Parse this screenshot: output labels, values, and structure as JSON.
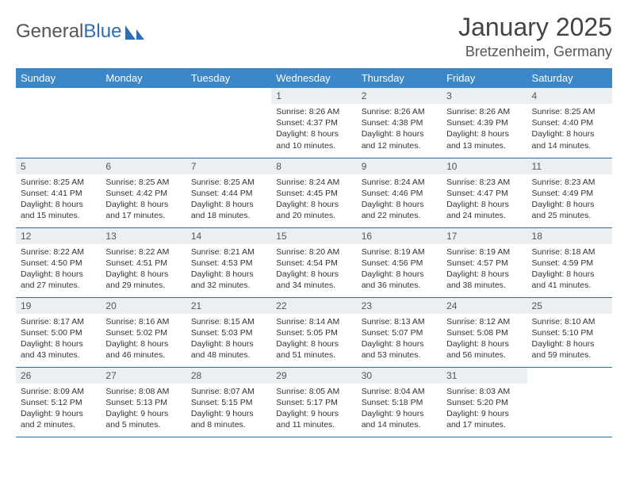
{
  "brand": {
    "part1": "General",
    "part2": "Blue",
    "part1_color": "#555555",
    "part2_color": "#2d6fb5"
  },
  "title": {
    "month": "January 2025",
    "location": "Bretzenheim, Germany",
    "month_fontsize": 32,
    "loc_fontsize": 18
  },
  "colors": {
    "header_bg": "#3b87c8",
    "header_text": "#ffffff",
    "daynum_bg": "#eceff2",
    "daynum_text": "#555555",
    "cell_border": "#2d6fb5",
    "body_text": "#333333",
    "page_bg": "#ffffff"
  },
  "weekdays": [
    "Sunday",
    "Monday",
    "Tuesday",
    "Wednesday",
    "Thursday",
    "Friday",
    "Saturday"
  ],
  "first_weekday_index": 3,
  "days": [
    {
      "n": 1,
      "sunrise": "8:26 AM",
      "sunset": "4:37 PM",
      "daylight": "8 hours and 10 minutes."
    },
    {
      "n": 2,
      "sunrise": "8:26 AM",
      "sunset": "4:38 PM",
      "daylight": "8 hours and 12 minutes."
    },
    {
      "n": 3,
      "sunrise": "8:26 AM",
      "sunset": "4:39 PM",
      "daylight": "8 hours and 13 minutes."
    },
    {
      "n": 4,
      "sunrise": "8:25 AM",
      "sunset": "4:40 PM",
      "daylight": "8 hours and 14 minutes."
    },
    {
      "n": 5,
      "sunrise": "8:25 AM",
      "sunset": "4:41 PM",
      "daylight": "8 hours and 15 minutes."
    },
    {
      "n": 6,
      "sunrise": "8:25 AM",
      "sunset": "4:42 PM",
      "daylight": "8 hours and 17 minutes."
    },
    {
      "n": 7,
      "sunrise": "8:25 AM",
      "sunset": "4:44 PM",
      "daylight": "8 hours and 18 minutes."
    },
    {
      "n": 8,
      "sunrise": "8:24 AM",
      "sunset": "4:45 PM",
      "daylight": "8 hours and 20 minutes."
    },
    {
      "n": 9,
      "sunrise": "8:24 AM",
      "sunset": "4:46 PM",
      "daylight": "8 hours and 22 minutes."
    },
    {
      "n": 10,
      "sunrise": "8:23 AM",
      "sunset": "4:47 PM",
      "daylight": "8 hours and 24 minutes."
    },
    {
      "n": 11,
      "sunrise": "8:23 AM",
      "sunset": "4:49 PM",
      "daylight": "8 hours and 25 minutes."
    },
    {
      "n": 12,
      "sunrise": "8:22 AM",
      "sunset": "4:50 PM",
      "daylight": "8 hours and 27 minutes."
    },
    {
      "n": 13,
      "sunrise": "8:22 AM",
      "sunset": "4:51 PM",
      "daylight": "8 hours and 29 minutes."
    },
    {
      "n": 14,
      "sunrise": "8:21 AM",
      "sunset": "4:53 PM",
      "daylight": "8 hours and 32 minutes."
    },
    {
      "n": 15,
      "sunrise": "8:20 AM",
      "sunset": "4:54 PM",
      "daylight": "8 hours and 34 minutes."
    },
    {
      "n": 16,
      "sunrise": "8:19 AM",
      "sunset": "4:56 PM",
      "daylight": "8 hours and 36 minutes."
    },
    {
      "n": 17,
      "sunrise": "8:19 AM",
      "sunset": "4:57 PM",
      "daylight": "8 hours and 38 minutes."
    },
    {
      "n": 18,
      "sunrise": "8:18 AM",
      "sunset": "4:59 PM",
      "daylight": "8 hours and 41 minutes."
    },
    {
      "n": 19,
      "sunrise": "8:17 AM",
      "sunset": "5:00 PM",
      "daylight": "8 hours and 43 minutes."
    },
    {
      "n": 20,
      "sunrise": "8:16 AM",
      "sunset": "5:02 PM",
      "daylight": "8 hours and 46 minutes."
    },
    {
      "n": 21,
      "sunrise": "8:15 AM",
      "sunset": "5:03 PM",
      "daylight": "8 hours and 48 minutes."
    },
    {
      "n": 22,
      "sunrise": "8:14 AM",
      "sunset": "5:05 PM",
      "daylight": "8 hours and 51 minutes."
    },
    {
      "n": 23,
      "sunrise": "8:13 AM",
      "sunset": "5:07 PM",
      "daylight": "8 hours and 53 minutes."
    },
    {
      "n": 24,
      "sunrise": "8:12 AM",
      "sunset": "5:08 PM",
      "daylight": "8 hours and 56 minutes."
    },
    {
      "n": 25,
      "sunrise": "8:10 AM",
      "sunset": "5:10 PM",
      "daylight": "8 hours and 59 minutes."
    },
    {
      "n": 26,
      "sunrise": "8:09 AM",
      "sunset": "5:12 PM",
      "daylight": "9 hours and 2 minutes."
    },
    {
      "n": 27,
      "sunrise": "8:08 AM",
      "sunset": "5:13 PM",
      "daylight": "9 hours and 5 minutes."
    },
    {
      "n": 28,
      "sunrise": "8:07 AM",
      "sunset": "5:15 PM",
      "daylight": "9 hours and 8 minutes."
    },
    {
      "n": 29,
      "sunrise": "8:05 AM",
      "sunset": "5:17 PM",
      "daylight": "9 hours and 11 minutes."
    },
    {
      "n": 30,
      "sunrise": "8:04 AM",
      "sunset": "5:18 PM",
      "daylight": "9 hours and 14 minutes."
    },
    {
      "n": 31,
      "sunrise": "8:03 AM",
      "sunset": "5:20 PM",
      "daylight": "9 hours and 17 minutes."
    }
  ],
  "labels": {
    "sunrise": "Sunrise:",
    "sunset": "Sunset:",
    "daylight": "Daylight:"
  }
}
